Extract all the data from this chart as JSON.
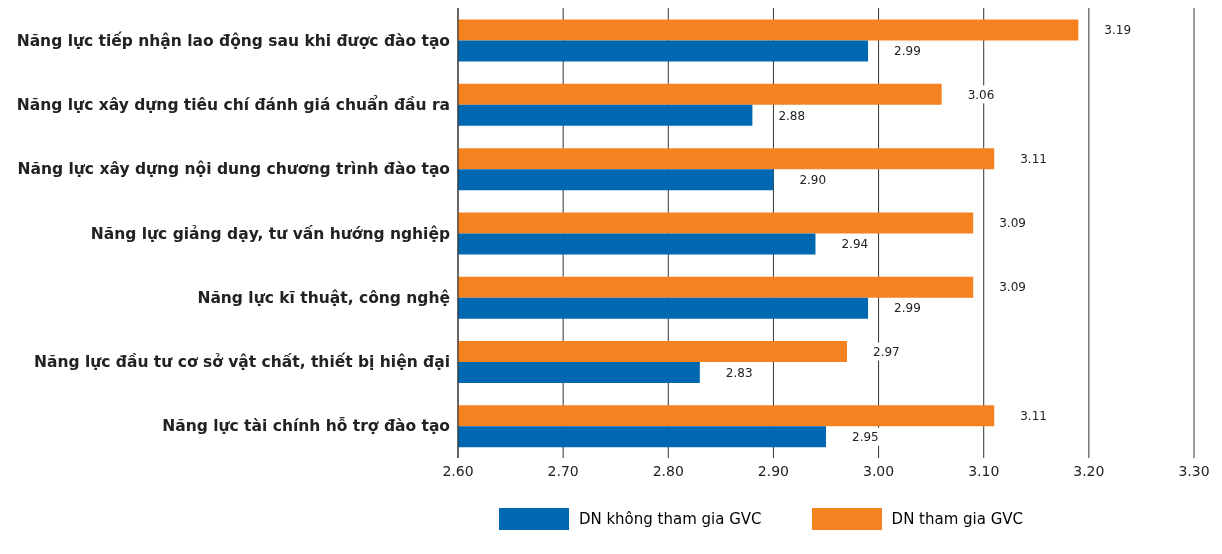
{
  "chart_data": {
    "type": "bar",
    "orientation": "horizontal",
    "categories": [
      "Năng lực tiếp nhận lao động sau khi được đào tạo",
      "Năng lực xây dựng tiêu chí đánh giá chuẩn đầu ra",
      "Năng lực xây dựng nội dung chương trình đào tạo",
      "Năng lực giảng dạy, tư vấn hướng nghiệp",
      "Năng lực kĩ thuật, công nghệ",
      "Năng lực đầu tư cơ sở vật chất, thiết bị hiện đại",
      "Năng lực tài chính hỗ trợ đào tạo"
    ],
    "series": [
      {
        "name": "DN không tham gia GVC",
        "color": "#0067b1",
        "values": [
          2.99,
          2.88,
          2.9,
          2.94,
          2.99,
          2.83,
          2.95
        ],
        "value_labels": [
          "2.99",
          "2.88",
          "2.90",
          "2.94",
          "2.99",
          "2.83",
          "2.95"
        ]
      },
      {
        "name": "DN tham gia GVC",
        "color": "#f58220",
        "values": [
          3.19,
          3.06,
          3.11,
          3.09,
          3.09,
          2.97,
          3.11
        ],
        "value_labels": [
          "3.19",
          "3.06",
          "3.11",
          "3.09",
          "3.09",
          "2.97",
          "3.11"
        ]
      }
    ],
    "xlim": [
      2.6,
      3.3
    ],
    "xticks": [
      {
        "value": 2.6,
        "label": "2.60"
      },
      {
        "value": 2.7,
        "label": "2.70"
      },
      {
        "value": 2.8,
        "label": "2.80"
      },
      {
        "value": 2.9,
        "label": "2.90"
      },
      {
        "value": 3.0,
        "label": "3.00"
      },
      {
        "value": 3.1,
        "label": "3.10"
      },
      {
        "value": 3.2,
        "label": "3.20"
      },
      {
        "value": 3.3,
        "label": "3.30"
      }
    ],
    "grid": "x",
    "legend": "bottom"
  }
}
